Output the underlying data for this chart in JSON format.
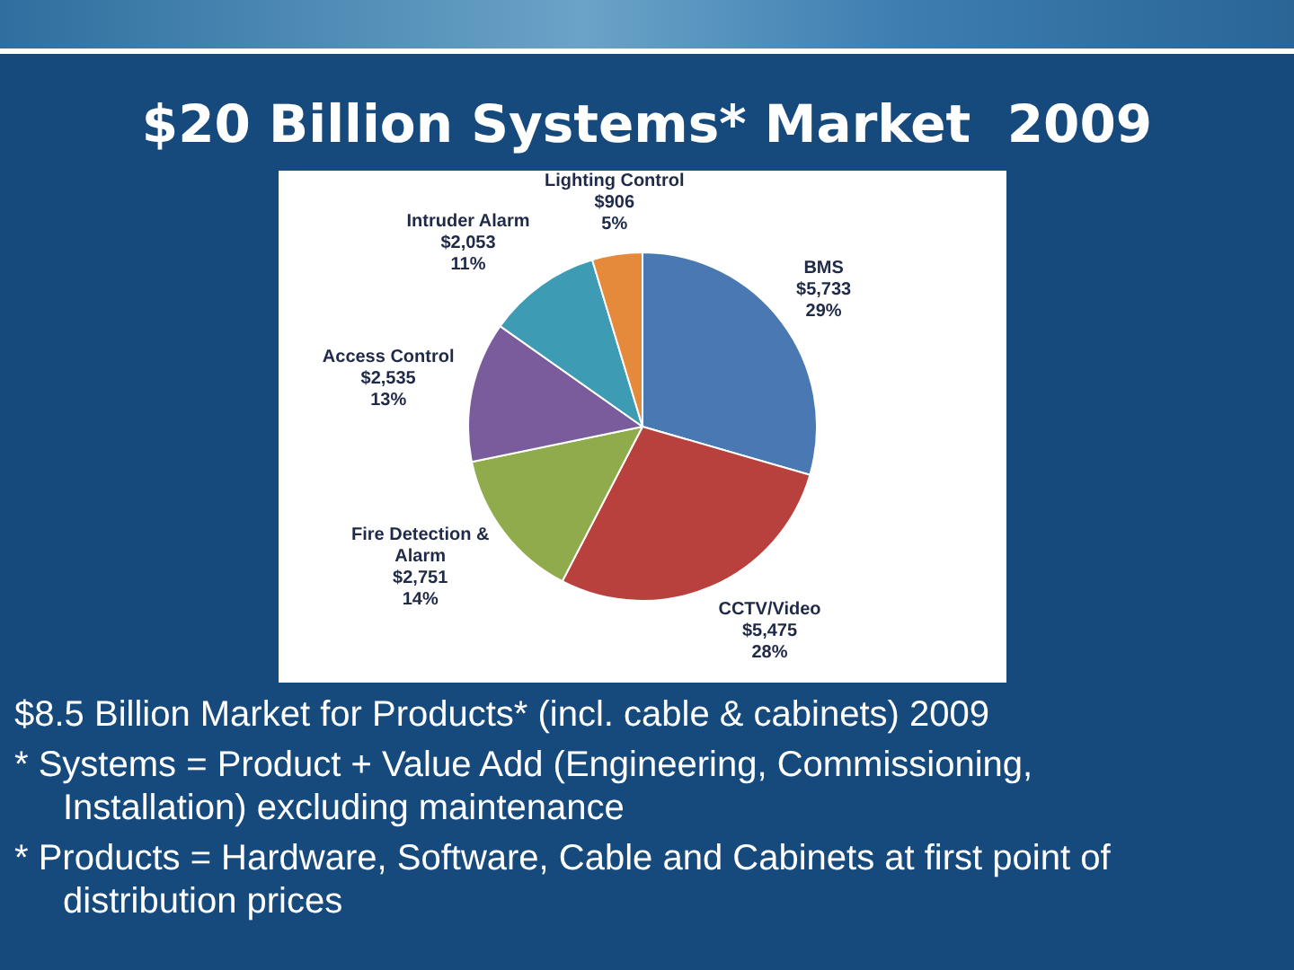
{
  "chart_data": {
    "type": "pie",
    "title": "$20 Billion Systems* Market  2009",
    "categories": [
      "BMS",
      "CCTV/Video",
      "Fire Detection & Alarm",
      "Access Control",
      "Intruder Alarm",
      "Lighting Control"
    ],
    "values": [
      5733,
      5475,
      2751,
      2535,
      2053,
      906
    ],
    "value_labels": [
      "$5,733\n29%",
      "$5,475\n28%",
      "$2,751\n14%",
      "$2,535\n13%",
      "$2,053\n11%",
      "$906\n5%"
    ],
    "colors": [
      "#4a78b2",
      "#b8413e",
      "#8fab4c",
      "#7a5b9c",
      "#3d9bb3",
      "#e58a3b"
    ],
    "annotations": [
      "$8.5 Billion Market for Products* (incl. cable & cabinets) 2009",
      "* Systems = Product + Value Add (Engineering, Commissioning, Installation) excluding maintenance",
      "* Products = Hardware, Software, Cable and Cabinets at first point of distribution prices"
    ]
  }
}
